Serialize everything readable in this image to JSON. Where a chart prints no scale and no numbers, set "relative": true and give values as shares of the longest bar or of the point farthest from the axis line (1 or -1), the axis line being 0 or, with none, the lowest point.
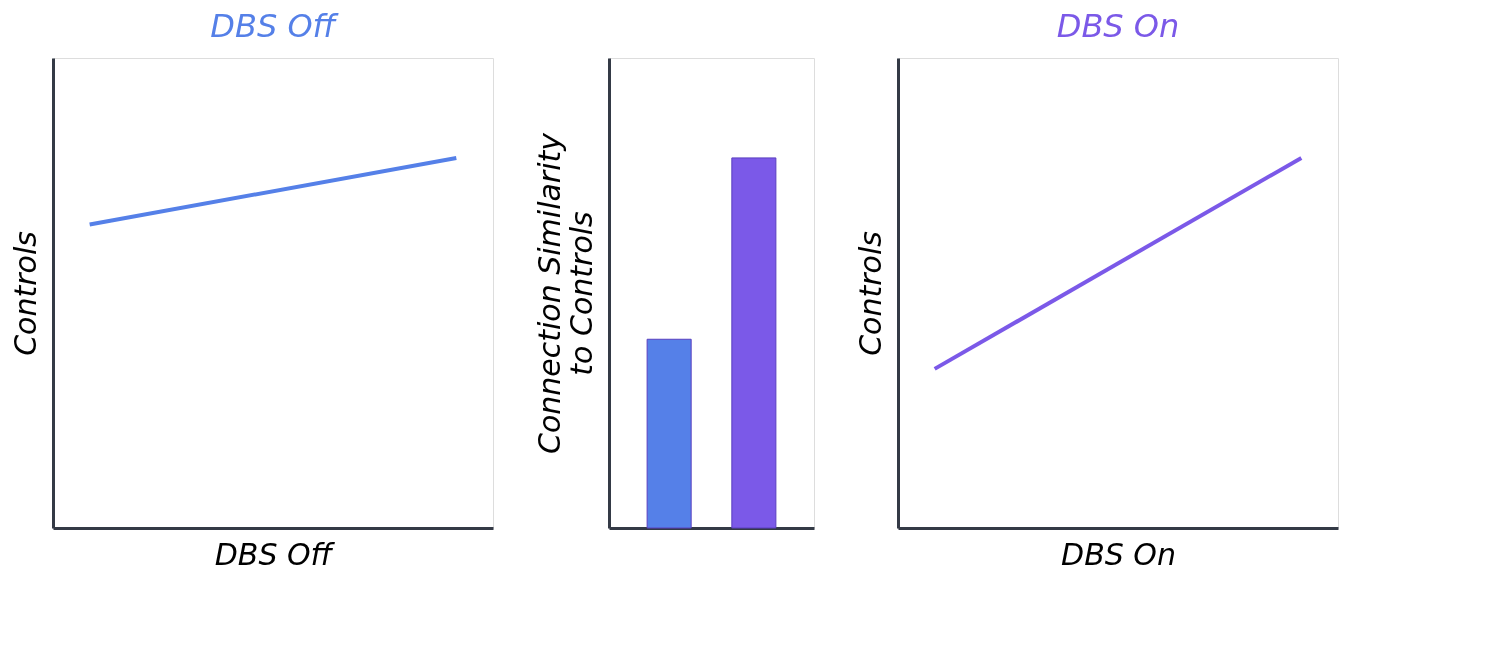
{
  "chart_data": [
    {
      "type": "line",
      "title": "DBS Off",
      "xlabel": "DBS Off",
      "ylabel": "Controls",
      "categories": [
        null,
        null
      ],
      "relative": true,
      "tick_labels": false,
      "grid": false,
      "series": [
        {
          "color": "#5580e8",
          "values": [
            0.82,
            1
          ]
        }
      ]
    },
    {
      "type": "bar",
      "ylabel": "Connection Similarity\nto Controls",
      "categories": [
        null,
        null
      ],
      "relative": true,
      "tick_labels": false,
      "grid": false,
      "values": [
        0.51,
        1
      ],
      "colors": [
        "#5580e8",
        "#7b59e8"
      ]
    },
    {
      "type": "line",
      "title": "DBS On",
      "xlabel": "DBS On",
      "ylabel": "Controls",
      "categories": [
        null,
        null
      ],
      "relative": true,
      "tick_labels": false,
      "grid": false,
      "series": [
        {
          "color": "#7b59e8",
          "values": [
            0.43,
            1
          ]
        }
      ]
    }
  ]
}
